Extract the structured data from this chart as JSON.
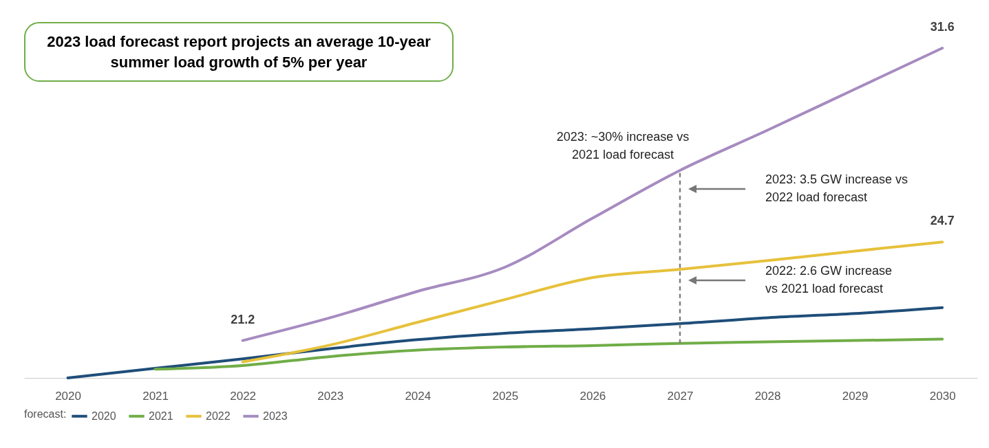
{
  "chart_data": {
    "type": "line",
    "title": "2023 load forecast report projects an average 10-year summer load growth of 5% per year",
    "x": [
      2020,
      2021,
      2022,
      2023,
      2024,
      2025,
      2026,
      2027,
      2028,
      2029,
      2030
    ],
    "xlim": [
      2019.5,
      2030.4
    ],
    "xticks": [
      2020,
      2021,
      2022,
      2023,
      2024,
      2025,
      2026,
      2027,
      2028,
      2029,
      2030
    ],
    "tick_labels": "x",
    "grid": false,
    "legend": "bottom",
    "legend_title": "forecast:",
    "marker": "none",
    "line_style": "solid",
    "series": [
      {
        "name": "2020",
        "color": "#1f4e79",
        "values": [
          19.87,
          20.21,
          20.55,
          20.91,
          21.23,
          21.46,
          21.62,
          21.8,
          22.01,
          22.16,
          22.37
        ]
      },
      {
        "name": "2021",
        "color": "#70ad47",
        "values": [
          null,
          20.18,
          20.31,
          20.63,
          20.86,
          20.97,
          21.02,
          21.1,
          21.15,
          21.2,
          21.25
        ]
      },
      {
        "name": "2022",
        "color": "#e6c13b",
        "values": [
          null,
          null,
          20.44,
          21.04,
          21.85,
          22.66,
          23.44,
          23.73,
          24.04,
          24.38,
          24.7
        ],
        "value_labels": [
          null,
          null,
          null,
          null,
          null,
          null,
          null,
          null,
          null,
          null,
          "24.7"
        ]
      },
      {
        "name": "2023",
        "color": "#a68bc0",
        "values": [
          null,
          null,
          21.2,
          22.01,
          22.95,
          23.81,
          25.55,
          27.25,
          28.68,
          30.14,
          31.6
        ],
        "value_labels": [
          null,
          null,
          "21.2",
          null,
          null,
          null,
          null,
          null,
          null,
          null,
          "31.6"
        ]
      }
    ],
    "ref_lines": [
      {
        "axis": "x",
        "value": 2027,
        "color": "#808080",
        "line_style": "dashed"
      }
    ],
    "annotations": [
      "2023: ~30% increase vs\n2021 load forecast",
      "2023: 3.5 GW increase vs\n2022 load forecast",
      "2022: 2.6 GW increase\nvs 2021 load forecast"
    ]
  }
}
